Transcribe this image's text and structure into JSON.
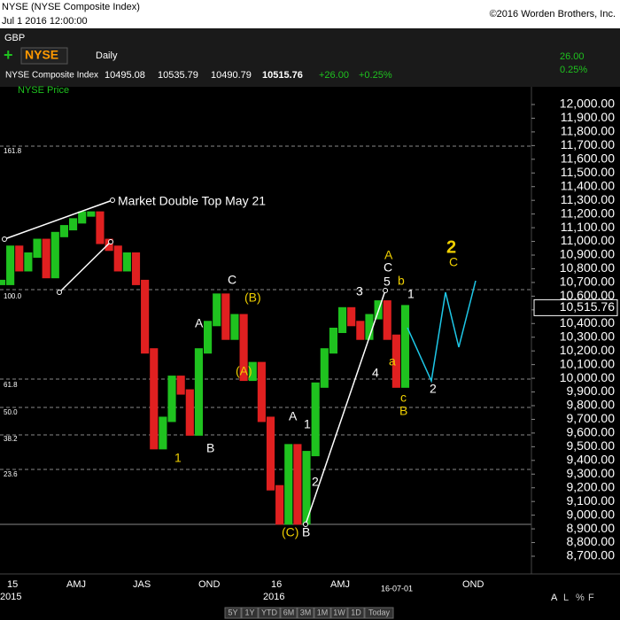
{
  "header": {
    "title": "NYSE (NYSE Composite Index)",
    "timestamp": "Jul 1 2016 12:00:00",
    "copyright": "©2016 Worden Brothers, Inc.",
    "currency": "GBP",
    "symbol": "NYSE",
    "period": "Daily",
    "name": "NYSE Composite Index",
    "open": "10495.08",
    "high": "10535.79",
    "low": "10490.79",
    "close": "10515.76",
    "change": "+26.00",
    "change_pct": "+0.25%",
    "side_change": "26.00",
    "side_pct": "0.25%"
  },
  "chart_data": {
    "type": "pricebars",
    "series": [
      {
        "name": "NYSE Price",
        "color": "#1fc21f",
        "down_color": "#e02020",
        "values": [
          10700,
          10950,
          10800,
          10900,
          11000,
          10750,
          11050,
          11100,
          11150,
          11200,
          11200,
          11000,
          10950,
          10800,
          10900,
          10700,
          10200,
          9500,
          9700,
          10000,
          9900,
          9600,
          10200,
          10400,
          10600,
          10300,
          10450,
          10000,
          10100,
          9700,
          9200,
          8950,
          9500,
          8950,
          9450,
          9950,
          10200,
          10350,
          10500,
          10400,
          10300,
          10450,
          10550,
          10300,
          9950,
          10515.76
        ]
      }
    ],
    "last_label": "10,515.76",
    "ylim": [
      8700,
      12000
    ],
    "yticks": [
      {
        "value": 8700,
        "label": "8,700.00"
      },
      {
        "value": 8800,
        "label": "8,800.00"
      },
      {
        "value": 8900,
        "label": "8,900.00"
      },
      {
        "value": 9000,
        "label": "9,000.00"
      },
      {
        "value": 9100,
        "label": "9,100.00"
      },
      {
        "value": 9200,
        "label": "9,200.00"
      },
      {
        "value": 9300,
        "label": "9,300.00"
      },
      {
        "value": 9400,
        "label": "9,400.00"
      },
      {
        "value": 9500,
        "label": "9,500.00"
      },
      {
        "value": 9600,
        "label": "9,600.00"
      },
      {
        "value": 9700,
        "label": "9,700.00"
      },
      {
        "value": 9800,
        "label": "9,800.00"
      },
      {
        "value": 9900,
        "label": "9,900.00"
      },
      {
        "value": 10000,
        "label": "10,000.00"
      },
      {
        "value": 10100,
        "label": "10,100.00"
      },
      {
        "value": 10200,
        "label": "10,200.00"
      },
      {
        "value": 10300,
        "label": "10,300.00"
      },
      {
        "value": 10400,
        "label": "10,400.00"
      },
      {
        "value": 10500,
        "label": "10,500.00"
      },
      {
        "value": 10600,
        "label": "10,600.00"
      },
      {
        "value": 10700,
        "label": "10,700.00"
      },
      {
        "value": 10800,
        "label": "10,800.00"
      },
      {
        "value": 10900,
        "label": "10,900.00"
      },
      {
        "value": 11000,
        "label": "11,000.00"
      },
      {
        "value": 11100,
        "label": "11,100.00"
      },
      {
        "value": 11200,
        "label": "11,200.00"
      },
      {
        "value": 11300,
        "label": "11,300.00"
      },
      {
        "value": 11400,
        "label": "11,400.00"
      },
      {
        "value": 11500,
        "label": "11,500.00"
      },
      {
        "value": 11600,
        "label": "11,600.00"
      },
      {
        "value": 11700,
        "label": "11,700.00"
      },
      {
        "value": 11800,
        "label": "11,800.00"
      },
      {
        "value": 11900,
        "label": "11,900.00"
      },
      {
        "value": 12000,
        "label": "12,000.00"
      }
    ],
    "x_labels": [
      "15",
      "2015",
      "AMJ",
      "JAS",
      "OND",
      "16",
      "2016",
      "AMJ",
      "16-07-01",
      "OND"
    ],
    "fib_levels": [
      "161.8",
      "100.0",
      "61.8",
      "50.0",
      "38.2",
      "23.6"
    ],
    "annotation": "Market Double Top May 21",
    "wave_labels": [
      "1",
      "A",
      "B",
      "C",
      "(B)",
      "(A)",
      "A",
      "1",
      "2",
      "(C)",
      "B",
      "3",
      "4",
      "5",
      "C",
      "A",
      "a",
      "b",
      "c",
      "B",
      "1",
      "2",
      "2",
      "C"
    ]
  },
  "footer": {
    "ranges": [
      "5Y",
      "1Y",
      "YTD",
      "6M",
      "3M",
      "1M",
      "1W",
      "1D",
      "Today"
    ],
    "options": [
      "A",
      "L",
      "%",
      "F"
    ]
  }
}
